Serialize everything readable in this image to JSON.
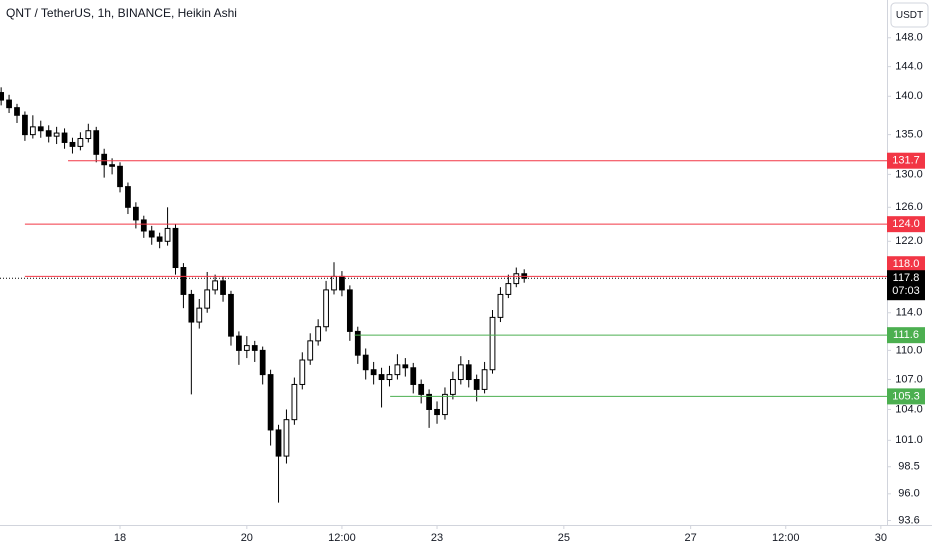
{
  "chart_data": {
    "type": "candlestick",
    "title": "QNT / TetherUS, 1h, BINANCE, Heikin Ashi",
    "currency": "USDT",
    "log_scale": true,
    "grid": false,
    "up_color": "#ffffff",
    "down_color": "#000000",
    "border_color": "#000000",
    "xlim": [
      16.107,
      30.097
    ],
    "ylim": [
      93.2,
      153.4
    ],
    "xticks": [
      18,
      20,
      {
        "value": 21.5,
        "label": "12:00"
      },
      23,
      25,
      27,
      {
        "value": 28.5,
        "label": "12:00"
      },
      30
    ],
    "yticks": [
      {
        "value": 148,
        "label": "148.0"
      },
      {
        "value": 144,
        "label": "144.0"
      },
      {
        "value": 140,
        "label": "140.0"
      },
      {
        "value": 135,
        "label": "135.0"
      },
      {
        "value": 130,
        "label": "130.0"
      },
      {
        "value": 126,
        "label": "126.0"
      },
      {
        "value": 122,
        "label": "122.0"
      },
      {
        "value": 114,
        "label": "114.0"
      },
      {
        "value": 110,
        "label": "110.0"
      },
      {
        "value": 107,
        "label": "107.0"
      },
      {
        "value": 104,
        "label": "104.0"
      },
      {
        "value": 101,
        "label": "101.0"
      },
      98.5,
      {
        "value": 96,
        "label": "96.0"
      },
      93.6
    ],
    "x": [
      16.125,
      16.25,
      16.375,
      16.5,
      16.625,
      16.75,
      16.875,
      17,
      17.125,
      17.25,
      17.375,
      17.5,
      17.625,
      17.75,
      17.875,
      18,
      18.125,
      18.25,
      18.375,
      18.5,
      18.625,
      18.75,
      18.875,
      19,
      19.125,
      19.25,
      19.375,
      19.5,
      19.625,
      19.75,
      19.875,
      20,
      20.125,
      20.25,
      20.375,
      20.5,
      20.625,
      20.75,
      20.875,
      21,
      21.125,
      21.25,
      21.375,
      21.5,
      21.625,
      21.75,
      21.875,
      22,
      22.125,
      22.25,
      22.375,
      22.5,
      22.625,
      22.75,
      22.875,
      23,
      23.125,
      23.25,
      23.375,
      23.5,
      23.625,
      23.75,
      23.875,
      24,
      24.125,
      24.25,
      24.375
    ],
    "open": [
      140.5,
      139.5,
      138.5,
      137.5,
      135,
      136,
      135.5,
      134.8,
      135.2,
      134,
      133.5,
      134.5,
      135.5,
      132.5,
      131.2,
      131,
      128.5,
      126,
      124.5,
      123.2,
      122.5,
      122,
      123.5,
      119,
      116,
      113,
      114.5,
      116.5,
      117.5,
      116,
      111.5,
      110,
      110.5,
      110,
      107.5,
      102,
      99.5,
      103,
      106.5,
      109,
      111,
      112.5,
      116.5,
      118,
      116.5,
      112,
      109.5,
      108,
      107.5,
      107,
      107.5,
      108.5,
      108.2,
      106.5,
      105.5,
      104,
      103.5,
      105.5,
      107,
      108.5,
      107,
      106,
      108,
      113.5,
      116,
      117.2,
      118.3
    ],
    "high": [
      141.2,
      140.2,
      139,
      138,
      137.5,
      136.8,
      136.2,
      136,
      135.8,
      134.6,
      135.3,
      136.4,
      136,
      133.2,
      132,
      131.5,
      129,
      126.6,
      125,
      123.8,
      123,
      126,
      124,
      119.5,
      116.5,
      115.5,
      118.5,
      118.2,
      118,
      116.4,
      112,
      111.5,
      111,
      110.4,
      108,
      102.5,
      104,
      107.2,
      109.8,
      111.8,
      113.3,
      117.5,
      119.6,
      118.6,
      117,
      112.5,
      110.2,
      108.8,
      108.2,
      108.4,
      109.6,
      109.2,
      108.7,
      107,
      106,
      104.8,
      106.2,
      107.8,
      109.4,
      109,
      107.5,
      108.8,
      114.3,
      116.8,
      118.2,
      119,
      118.8
    ],
    "low": [
      138.8,
      137.8,
      136.5,
      134.2,
      134.5,
      134.6,
      134,
      133.8,
      133.2,
      132.6,
      133,
      134,
      131.5,
      129.6,
      130,
      127.8,
      125.2,
      123.5,
      122.4,
      121.6,
      121.2,
      121.5,
      118.2,
      114.5,
      105.5,
      112.3,
      114,
      116,
      115.2,
      110.5,
      108.5,
      109.2,
      108.8,
      106.5,
      100.5,
      95.2,
      98.8,
      102.5,
      106,
      108.5,
      110.5,
      112,
      116,
      115.8,
      111,
      108.6,
      107,
      106.5,
      104.2,
      106.3,
      107,
      107.3,
      105.6,
      104.6,
      102.2,
      102.6,
      103,
      105,
      106.5,
      106.2,
      104.8,
      105.6,
      107.6,
      113,
      115.6,
      116.8,
      117.3
    ],
    "close": [
      139.5,
      138.5,
      137.5,
      135,
      136,
      135.5,
      134.8,
      135.2,
      134,
      133.5,
      134.5,
      135.5,
      132.5,
      131.2,
      131,
      128.5,
      126,
      124.5,
      123.2,
      122.5,
      122,
      123.5,
      119,
      116,
      113,
      114.5,
      116.5,
      117.5,
      116,
      111.5,
      110,
      110.5,
      110,
      107.5,
      102,
      99.5,
      103,
      106.5,
      109,
      111,
      112.5,
      116.5,
      118,
      116.5,
      112,
      109.5,
      108,
      107.5,
      107,
      107.5,
      108.5,
      108.2,
      106.5,
      105.5,
      104,
      103.5,
      105.5,
      107,
      108.5,
      107,
      106,
      108,
      113.5,
      116,
      117.2,
      118.3,
      117.8
    ],
    "levels": [
      {
        "value": 131.7,
        "start": 17.18,
        "color": "#f23645"
      },
      {
        "value": 124,
        "label": "124.0",
        "start": 16.5,
        "color": "#f23645"
      },
      {
        "value": 118,
        "label": "118.0",
        "start": 16.5,
        "color": "#f23645"
      },
      {
        "value": 111.6,
        "start": 21.7,
        "color": "#4caf50"
      },
      {
        "value": 105.3,
        "start": 22.26,
        "color": "#4caf50"
      }
    ],
    "last_price": {
      "value": 117.8,
      "countdown": "07:03",
      "color": "#000000"
    }
  }
}
